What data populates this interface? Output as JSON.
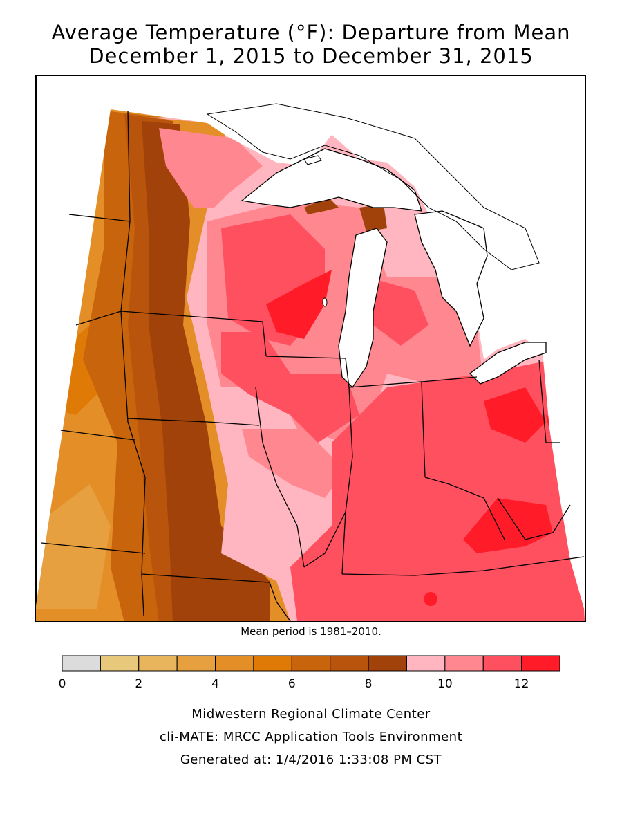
{
  "title_line1": "Average Temperature (°F): Departure from Mean",
  "title_line2": "December 1, 2015 to December 31, 2015",
  "mean_note": "Mean period is 1981–2010.",
  "legend": {
    "bins": [
      {
        "from": 0,
        "to": 1,
        "color": "#dcdcdc"
      },
      {
        "from": 1,
        "to": 2,
        "color": "#e8c87a"
      },
      {
        "from": 2,
        "to": 3,
        "color": "#e8b45c"
      },
      {
        "from": 3,
        "to": 4,
        "color": "#e6a040"
      },
      {
        "from": 4,
        "to": 5,
        "color": "#e48e28"
      },
      {
        "from": 5,
        "to": 6,
        "color": "#e07a06"
      },
      {
        "from": 6,
        "to": 7,
        "color": "#c8640c"
      },
      {
        "from": 7,
        "to": 8,
        "color": "#b8540c"
      },
      {
        "from": 8,
        "to": 9,
        "color": "#a0420a"
      },
      {
        "from": 9,
        "to": 10,
        "color": "#ffb6c1"
      },
      {
        "from": 10,
        "to": 11,
        "color": "#ff8890"
      },
      {
        "from": 11,
        "to": 12,
        "color": "#ff5060"
      },
      {
        "from": 12,
        "to": 13,
        "color": "#ff1c28"
      }
    ],
    "tick_labels": [
      "0",
      "2",
      "4",
      "6",
      "8",
      "10",
      "12"
    ]
  },
  "footer": {
    "line1": "Midwestern Regional Climate Center",
    "line2": "cli-MATE: MRCC Application Tools Environment",
    "line3": "Generated at: 1/4/2016 1:33:08 PM CST"
  }
}
